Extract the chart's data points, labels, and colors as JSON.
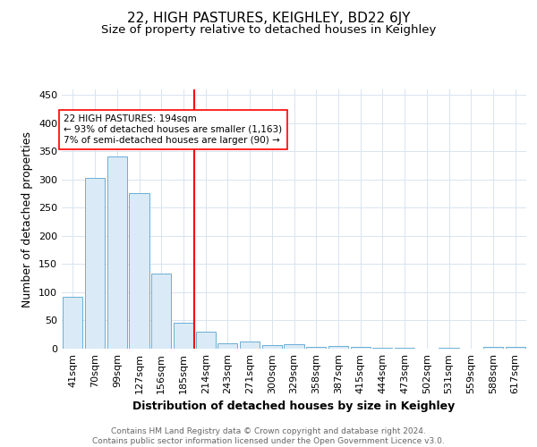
{
  "title": "22, HIGH PASTURES, KEIGHLEY, BD22 6JY",
  "subtitle": "Size of property relative to detached houses in Keighley",
  "xlabel": "Distribution of detached houses by size in Keighley",
  "ylabel": "Number of detached properties",
  "footer": "Contains HM Land Registry data © Crown copyright and database right 2024.\nContains public sector information licensed under the Open Government Licence v3.0.",
  "categories": [
    "41sqm",
    "70sqm",
    "99sqm",
    "127sqm",
    "156sqm",
    "185sqm",
    "214sqm",
    "243sqm",
    "271sqm",
    "300sqm",
    "329sqm",
    "358sqm",
    "387sqm",
    "415sqm",
    "444sqm",
    "473sqm",
    "502sqm",
    "531sqm",
    "559sqm",
    "588sqm",
    "617sqm"
  ],
  "values": [
    92,
    303,
    341,
    276,
    133,
    46,
    30,
    10,
    12,
    7,
    8,
    3,
    4,
    3,
    2,
    1,
    0,
    2,
    0,
    3,
    3
  ],
  "bar_color": "#daeaf6",
  "bar_edge_color": "#6aaed6",
  "vline_color": "red",
  "annotation_text": "22 HIGH PASTURES: 194sqm\n← 93% of detached houses are smaller (1,163)\n7% of semi-detached houses are larger (90) →",
  "annotation_box_color": "white",
  "annotation_box_edge_color": "red",
  "ylim": [
    0,
    460
  ],
  "yticks": [
    0,
    50,
    100,
    150,
    200,
    250,
    300,
    350,
    400,
    450
  ],
  "title_fontsize": 11,
  "subtitle_fontsize": 9.5,
  "axis_label_fontsize": 9,
  "tick_fontsize": 8,
  "footer_fontsize": 6.5,
  "grid_color": "#d8e4f0"
}
